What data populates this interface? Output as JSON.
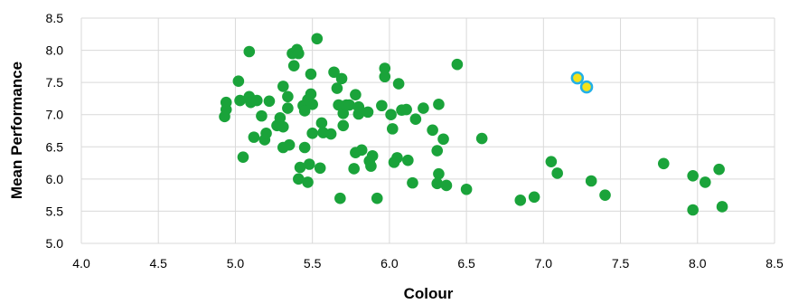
{
  "chart_data": {
    "type": "scatter",
    "xlabel": "Colour",
    "ylabel": "Mean Performance",
    "xlim": [
      4.0,
      8.5
    ],
    "ylim": [
      5.0,
      8.5
    ],
    "x_ticks": [
      "4.0",
      "4.5",
      "5.0",
      "5.5",
      "6.0",
      "6.5",
      "7.0",
      "7.5",
      "8.0",
      "8.5"
    ],
    "y_ticks": [
      "5.0",
      "5.5",
      "6.0",
      "6.5",
      "7.0",
      "7.5",
      "8.0",
      "8.5"
    ],
    "grid": true,
    "colors": {
      "main": "#1aa33a",
      "highlight_fill": "#f4e21a",
      "highlight_edge": "#22b0e8",
      "grid": "#d9d9d9"
    },
    "series": [
      {
        "points": [
          [
            4.93,
            6.97
          ],
          [
            4.94,
            7.08
          ],
          [
            4.94,
            7.19
          ],
          [
            5.02,
            7.52
          ],
          [
            5.03,
            7.22
          ],
          [
            5.05,
            6.34
          ],
          [
            5.09,
            7.98
          ],
          [
            5.09,
            7.28
          ],
          [
            5.1,
            7.19
          ],
          [
            5.12,
            6.65
          ],
          [
            5.14,
            7.22
          ],
          [
            5.17,
            6.98
          ],
          [
            5.19,
            6.61
          ],
          [
            5.2,
            6.71
          ],
          [
            5.22,
            7.21
          ],
          [
            5.27,
            6.83
          ],
          [
            5.29,
            6.95
          ],
          [
            5.31,
            7.44
          ],
          [
            5.31,
            6.81
          ],
          [
            5.31,
            6.49
          ],
          [
            5.34,
            7.28
          ],
          [
            5.34,
            7.1
          ],
          [
            5.35,
            6.53
          ],
          [
            5.37,
            7.95
          ],
          [
            5.38,
            7.76
          ],
          [
            5.4,
            8.01
          ],
          [
            5.41,
            7.95
          ],
          [
            5.41,
            6.0
          ],
          [
            5.42,
            6.18
          ],
          [
            5.44,
            7.14
          ],
          [
            5.45,
            6.49
          ],
          [
            5.45,
            7.06
          ],
          [
            5.47,
            7.23
          ],
          [
            5.47,
            5.95
          ],
          [
            5.48,
            6.23
          ],
          [
            5.49,
            7.63
          ],
          [
            5.49,
            7.32
          ],
          [
            5.5,
            7.16
          ],
          [
            5.5,
            6.71
          ],
          [
            5.53,
            8.18
          ],
          [
            5.55,
            6.17
          ],
          [
            5.56,
            6.87
          ],
          [
            5.57,
            6.72
          ],
          [
            5.62,
            6.7
          ],
          [
            5.64,
            7.66
          ],
          [
            5.66,
            7.41
          ],
          [
            5.67,
            7.15
          ],
          [
            5.68,
            5.7
          ],
          [
            5.69,
            7.56
          ],
          [
            5.7,
            7.02
          ],
          [
            5.7,
            6.83
          ],
          [
            5.72,
            7.15
          ],
          [
            5.74,
            7.15
          ],
          [
            5.77,
            6.16
          ],
          [
            5.78,
            7.31
          ],
          [
            5.78,
            6.41
          ],
          [
            5.8,
            7.12
          ],
          [
            5.8,
            7.01
          ],
          [
            5.82,
            6.45
          ],
          [
            5.86,
            7.04
          ],
          [
            5.87,
            6.28
          ],
          [
            5.88,
            6.2
          ],
          [
            5.89,
            6.36
          ],
          [
            5.92,
            5.7
          ],
          [
            5.95,
            7.14
          ],
          [
            5.97,
            7.72
          ],
          [
            5.97,
            7.59
          ],
          [
            6.01,
            7.0
          ],
          [
            6.02,
            6.78
          ],
          [
            6.03,
            6.26
          ],
          [
            6.05,
            6.33
          ],
          [
            6.06,
            7.48
          ],
          [
            6.08,
            7.07
          ],
          [
            6.11,
            7.08
          ],
          [
            6.12,
            6.29
          ],
          [
            6.15,
            5.94
          ],
          [
            6.17,
            6.93
          ],
          [
            6.22,
            7.1
          ],
          [
            6.28,
            6.76
          ],
          [
            6.31,
            6.44
          ],
          [
            6.31,
            5.93
          ],
          [
            6.32,
            6.08
          ],
          [
            6.32,
            7.16
          ],
          [
            6.35,
            6.62
          ],
          [
            6.37,
            5.9
          ],
          [
            6.44,
            7.78
          ],
          [
            6.5,
            5.84
          ],
          [
            6.6,
            6.63
          ],
          [
            6.85,
            5.67
          ],
          [
            6.94,
            5.72
          ],
          [
            7.05,
            6.27
          ],
          [
            7.09,
            6.09
          ],
          [
            7.31,
            5.97
          ],
          [
            7.4,
            5.75
          ],
          [
            7.78,
            6.24
          ],
          [
            7.97,
            6.05
          ],
          [
            7.97,
            5.52
          ],
          [
            8.05,
            5.95
          ],
          [
            8.14,
            6.15
          ],
          [
            8.16,
            5.57
          ]
        ]
      },
      {
        "points": [
          [
            7.22,
            7.57
          ],
          [
            7.28,
            7.43
          ]
        ]
      }
    ]
  }
}
